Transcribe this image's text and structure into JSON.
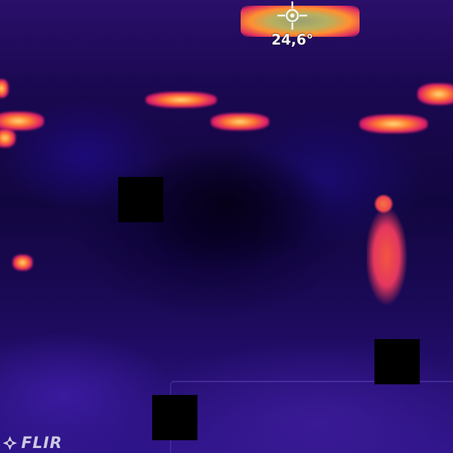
{
  "overlay": {
    "temperature": "24,6",
    "temperature_unit": "°",
    "logo_text": "FLIR"
  },
  "icons": {
    "crosshair": "crosshair-icon",
    "logo_mark": "flir-logo-icon"
  },
  "colors": {
    "hot": "#ffe07a",
    "warm": "#ff7a30",
    "mid": "#e0206a",
    "cool": "#1a0850",
    "cold": "#060018"
  }
}
